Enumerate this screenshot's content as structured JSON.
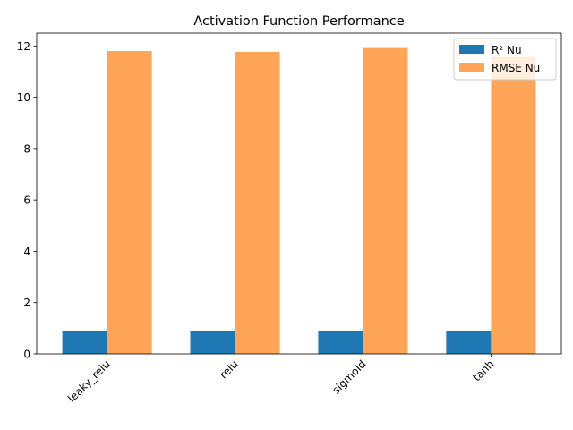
{
  "chart_data": {
    "type": "bar",
    "title": "Activation Function Performance",
    "xlabel": "",
    "ylabel": "",
    "categories": [
      "leaky_relu",
      "relu",
      "sigmoid",
      "tanh"
    ],
    "series": [
      {
        "name": "R² Nu",
        "values": [
          0.88,
          0.88,
          0.88,
          0.88
        ],
        "color": "#1f77b4"
      },
      {
        "name": "RMSE Nu",
        "values": [
          11.8,
          11.77,
          11.92,
          11.57
        ],
        "color": "#ffa557"
      }
    ],
    "ylim": [
      0,
      12.5
    ],
    "yticks": [
      0,
      2,
      4,
      6,
      8,
      10,
      12
    ],
    "ytick_labels": [
      "0",
      "2",
      "4",
      "6",
      "8",
      "10",
      "12"
    ],
    "grid": false,
    "legend_position": "top-right",
    "xtick_rotation": 45
  }
}
